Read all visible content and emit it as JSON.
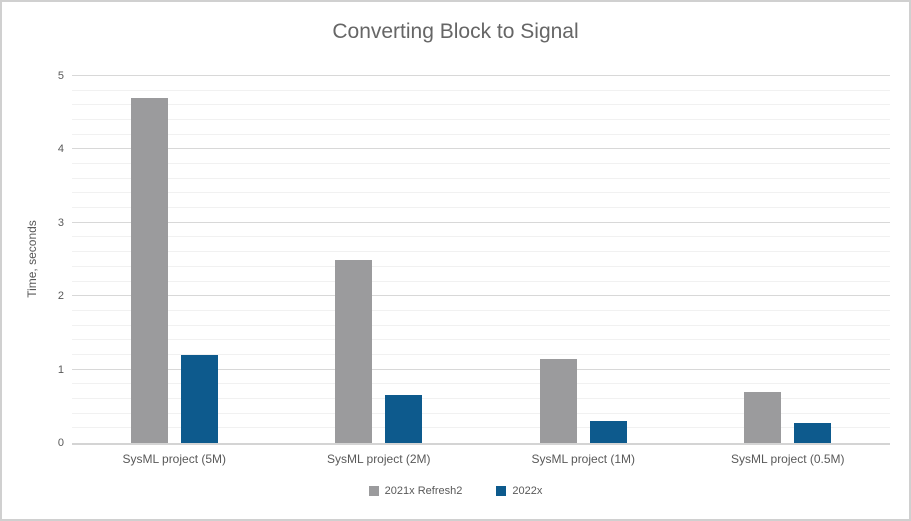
{
  "chart_data": {
    "type": "bar",
    "title": "Converting Block to Signal",
    "ylabel": "Time, seconds",
    "xlabel": "",
    "categories": [
      "SysML project (5M)",
      "SysML project (2M)",
      "SysML project (1M)",
      "SysML project (0.5M)"
    ],
    "series": [
      {
        "name": "2021x Refresh2",
        "color": "#9b9b9d",
        "values": [
          4.7,
          2.5,
          1.15,
          0.7
        ]
      },
      {
        "name": "2022x",
        "color": "#0d5a8d",
        "values": [
          1.2,
          0.65,
          0.3,
          0.27
        ]
      }
    ],
    "ylim": [
      0,
      5
    ],
    "y_ticks": [
      0,
      1,
      2,
      3,
      4,
      5
    ],
    "minor_grid_step": 0.2,
    "grid": "on",
    "legend_position": "bottom"
  },
  "colors": {
    "background": "#ffffff",
    "frame_border": "#d0d0d0",
    "major_gridline": "#d8d8d8",
    "minor_gridline": "#f1f1f1",
    "axis_line": "#d4d4d4",
    "text": "#595959",
    "title_text": "#666666"
  }
}
